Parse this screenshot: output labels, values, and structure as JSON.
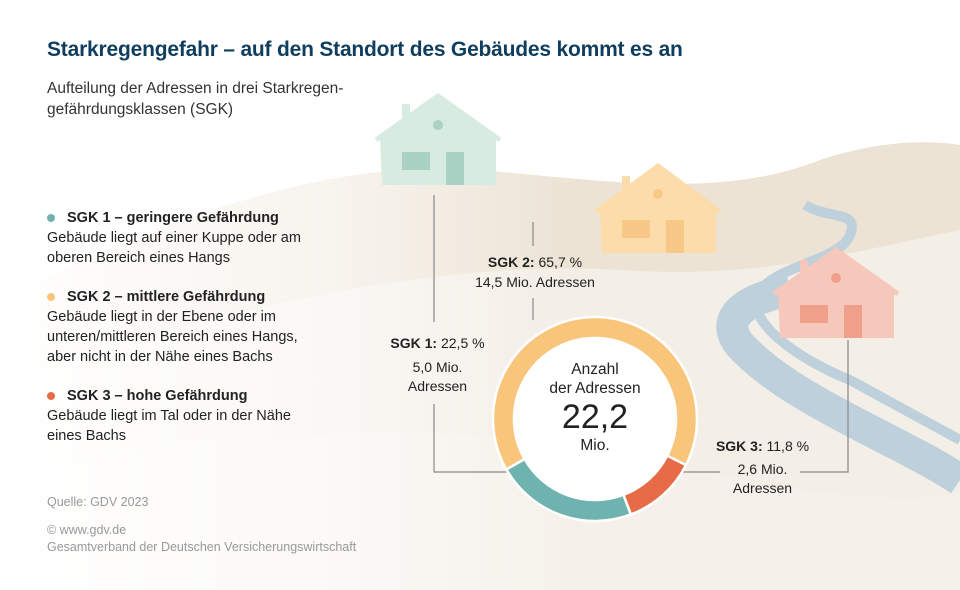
{
  "title": "Starkregengefahr – auf den Standort des Gebäudes kommt es an",
  "subtitle": "Aufteilung der Adressen in drei Starkregen-gefährdungsklassen (SGK)",
  "legend": [
    {
      "heading": "SGK 1 – geringere Gefährdung",
      "text": "Gebäude liegt auf einer Kuppe oder am oberen Bereich eines Hangs",
      "color": "#6fb3b1"
    },
    {
      "heading": "SGK 2 – mittlere Gefährdung",
      "text": "Gebäude liegt in der Ebene oder im unteren/mittleren Bereich eines Hangs, aber nicht in der Nähe eines Bachs",
      "color": "#f8c57b"
    },
    {
      "heading": "SGK 3 – hohe Gefährdung",
      "text": "Gebäude liegt im Tal oder in der Nähe eines Bachs",
      "color": "#e86b47"
    }
  ],
  "source": "Quelle: GDV 2023",
  "copyright": "© www.gdv.de",
  "publisher": "Gesamtverband der Deutschen Versicherungswirtschaft",
  "chart_data": {
    "type": "pie",
    "variant": "donut",
    "center_label": {
      "line1": "Anzahl",
      "line2": "der Adressen",
      "value": "22,2",
      "unit": "Mio."
    },
    "total_mio": 22.2,
    "slices": [
      {
        "key": "SGK 1:",
        "percent_label": "22,5 %",
        "percent": 22.5,
        "count_label": "5,0 Mio. Adressen",
        "count_line1": "5,0 Mio.",
        "count_line2": "Adressen",
        "count_mio": 5.0,
        "color": "#6fb3b1"
      },
      {
        "key": "SGK 2:",
        "percent_label": "65,7 %",
        "percent": 65.7,
        "count_label": "14,5 Mio. Adressen",
        "count_mio": 14.5,
        "color": "#f8c57b"
      },
      {
        "key": "SGK 3:",
        "percent_label": "11,8 %",
        "percent": 11.8,
        "count_label": "2,6 Mio. Adressen",
        "count_line1": "2,6 Mio.",
        "count_line2": "Adressen",
        "count_mio": 2.6,
        "color": "#e86b47"
      }
    ]
  }
}
